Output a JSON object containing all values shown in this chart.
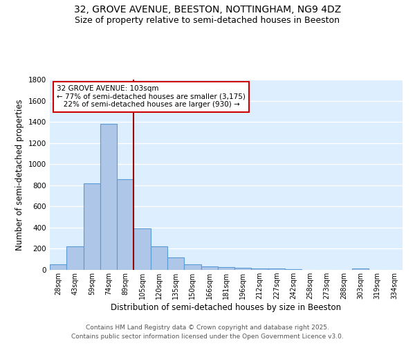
{
  "title": "32, GROVE AVENUE, BEESTON, NOTTINGHAM, NG9 4DZ",
  "subtitle": "Size of property relative to semi-detached houses in Beeston",
  "xlabel": "Distribution of semi-detached houses by size in Beeston",
  "ylabel": "Number of semi-detached properties",
  "categories": [
    "28sqm",
    "43sqm",
    "59sqm",
    "74sqm",
    "89sqm",
    "105sqm",
    "120sqm",
    "135sqm",
    "150sqm",
    "166sqm",
    "181sqm",
    "196sqm",
    "212sqm",
    "227sqm",
    "242sqm",
    "258sqm",
    "273sqm",
    "288sqm",
    "303sqm",
    "319sqm",
    "334sqm"
  ],
  "values": [
    50,
    220,
    820,
    1380,
    860,
    395,
    220,
    120,
    50,
    35,
    25,
    20,
    15,
    10,
    8,
    0,
    0,
    0,
    10,
    0,
    0
  ],
  "bar_color": "#aec6e8",
  "bar_edge_color": "#5b9bd5",
  "background_color": "#ddeeff",
  "grid_color": "#ffffff",
  "vline_x": 4.5,
  "vline_color": "#990000",
  "annotation_text": "32 GROVE AVENUE: 103sqm\n← 77% of semi-detached houses are smaller (3,175)\n   22% of semi-detached houses are larger (930) →",
  "annotation_box_color": "#ffffff",
  "annotation_box_edge": "#cc0000",
  "ylim": [
    0,
    1800
  ],
  "footer1": "Contains HM Land Registry data © Crown copyright and database right 2025.",
  "footer2": "Contains public sector information licensed under the Open Government Licence v3.0.",
  "title_fontsize": 10,
  "subtitle_fontsize": 9,
  "tick_fontsize": 7,
  "label_fontsize": 8.5
}
